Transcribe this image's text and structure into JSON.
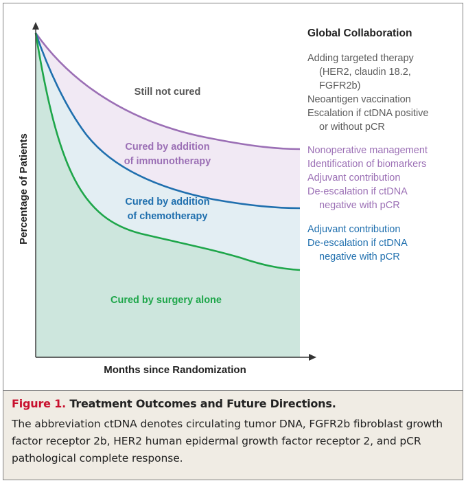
{
  "figure": {
    "y_axis_label": "Percentage of Patients",
    "x_axis_label": "Months since Randomization",
    "regions": {
      "not_cured": "Still not cured",
      "immuno_line1": "Cured by addition",
      "immuno_line2": "of immunotherapy",
      "chemo_line1": "Cured by addition",
      "chemo_line2": "of chemotherapy",
      "surgery": "Cured by surgery alone"
    },
    "side_panel": {
      "title": "Global Collaboration",
      "gray_lines": [
        "Adding targeted therapy",
        "(HER2, claudin 18.2,",
        "FGFR2b)",
        "Neoantigen vaccination",
        "Escalation if ctDNA positive",
        "or without pCR"
      ],
      "purple_lines": [
        "Nonoperative management",
        "Identification of biomarkers",
        "Adjuvant contribution",
        "De-escalation if ctDNA",
        "negative with pCR"
      ],
      "blue_lines": [
        "Adjuvant contribution",
        "De-escalation if ctDNA",
        "negative with pCR"
      ]
    },
    "colors": {
      "immuno_curve": "#9b6fb5",
      "chemo_curve": "#1f6fae",
      "surgery_curve": "#1ea64a",
      "immuno_fill": "#f1e9f4",
      "chemo_fill": "#e3eef3",
      "surgery_fill": "#cde6dd",
      "caption_label": "#c8102e",
      "gray_text": "#5a5a5a"
    }
  },
  "caption": {
    "label": "Figure 1.",
    "title": "Treatment Outcomes and Future Directions.",
    "body": "The abbreviation ctDNA denotes circulating tumor DNA, FGFR2b fibroblast growth factor receptor 2b, HER2 human epidermal growth factor receptor 2, and pCR pathological complete response."
  }
}
